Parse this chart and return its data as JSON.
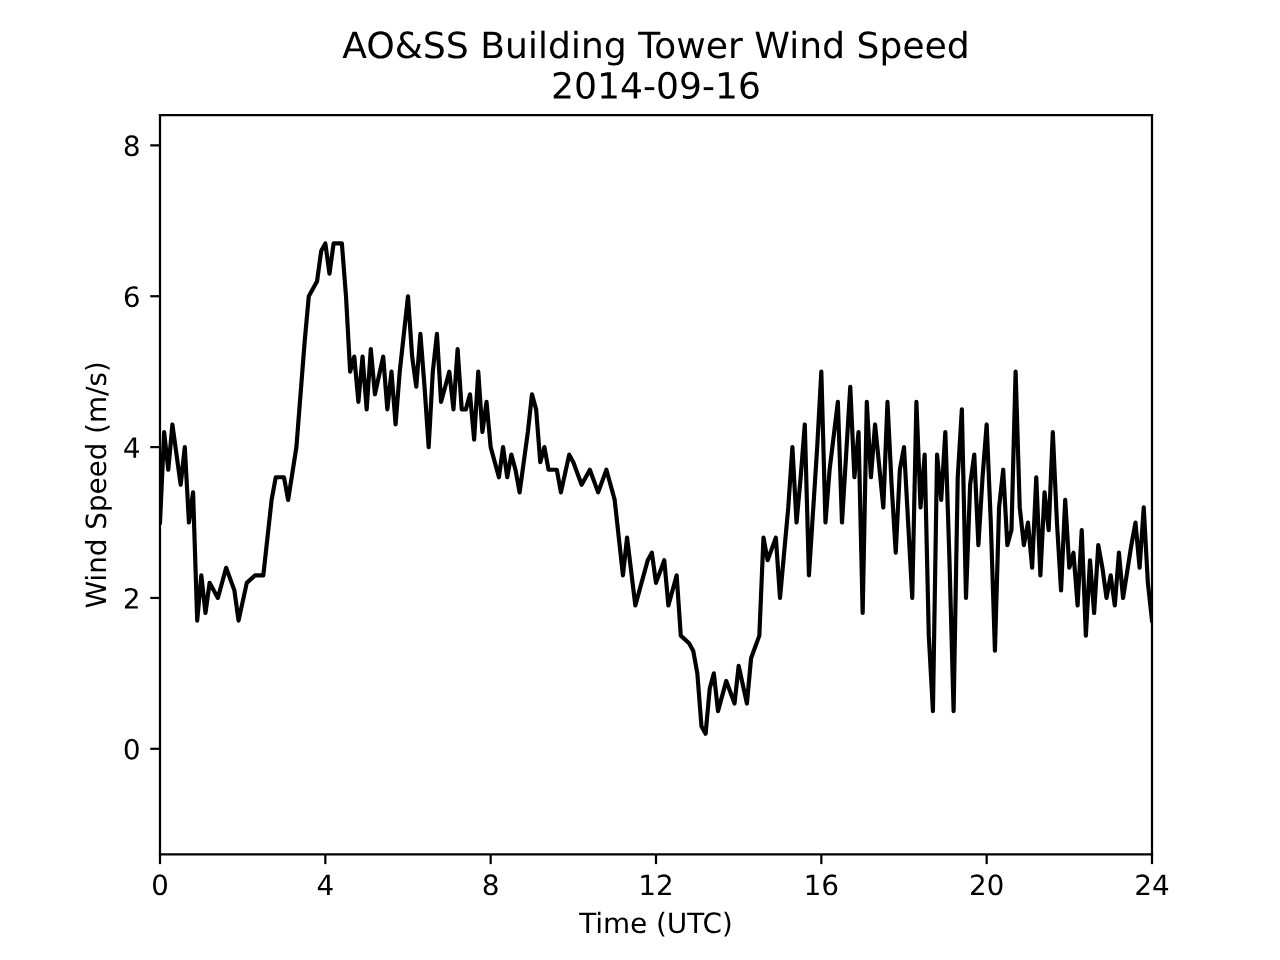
{
  "chart_data": {
    "type": "line",
    "title": "AO&SS Building Tower Wind Speed\n2014-09-16",
    "xlabel": "Time (UTC)",
    "ylabel": "Wind Speed (m/s)",
    "xlim": [
      0,
      24
    ],
    "xticks": [
      0,
      4,
      8,
      12,
      16,
      20,
      24
    ],
    "ylim": [
      -1.4,
      8.4
    ],
    "yticks": [
      0,
      2,
      4,
      6,
      8
    ],
    "grid": false,
    "legend": false,
    "marker": "none",
    "line_style": "solid",
    "series": [
      {
        "color": "#000000",
        "x": [
          0.0,
          0.1,
          0.2,
          0.3,
          0.5,
          0.6,
          0.7,
          0.8,
          0.9,
          1.0,
          1.1,
          1.2,
          1.4,
          1.6,
          1.8,
          1.9,
          2.1,
          2.3,
          2.5,
          2.7,
          2.8,
          3.0,
          3.1,
          3.3,
          3.5,
          3.6,
          3.8,
          3.9,
          4.0,
          4.1,
          4.2,
          4.4,
          4.5,
          4.6,
          4.7,
          4.8,
          4.9,
          5.0,
          5.1,
          5.2,
          5.4,
          5.5,
          5.6,
          5.7,
          5.8,
          5.9,
          6.0,
          6.1,
          6.2,
          6.3,
          6.4,
          6.5,
          6.6,
          6.7,
          6.8,
          6.9,
          7.0,
          7.1,
          7.2,
          7.3,
          7.4,
          7.5,
          7.6,
          7.7,
          7.8,
          7.9,
          8.0,
          8.2,
          8.3,
          8.4,
          8.5,
          8.6,
          8.7,
          8.9,
          9.0,
          9.1,
          9.2,
          9.3,
          9.4,
          9.6,
          9.7,
          9.9,
          10.0,
          10.2,
          10.4,
          10.6,
          10.8,
          11.0,
          11.2,
          11.3,
          11.5,
          11.6,
          11.8,
          11.9,
          12.0,
          12.2,
          12.3,
          12.5,
          12.6,
          12.8,
          12.9,
          13.0,
          13.1,
          13.2,
          13.3,
          13.4,
          13.5,
          13.7,
          13.9,
          14.0,
          14.2,
          14.3,
          14.5,
          14.6,
          14.7,
          14.9,
          15.0,
          15.2,
          15.3,
          15.4,
          15.5,
          15.6,
          15.7,
          15.9,
          16.0,
          16.1,
          16.2,
          16.4,
          16.5,
          16.6,
          16.7,
          16.8,
          16.9,
          17.0,
          17.1,
          17.2,
          17.3,
          17.5,
          17.6,
          17.7,
          17.8,
          17.9,
          18.0,
          18.1,
          18.2,
          18.3,
          18.4,
          18.5,
          18.6,
          18.7,
          18.8,
          18.9,
          19.0,
          19.1,
          19.2,
          19.3,
          19.4,
          19.5,
          19.6,
          19.7,
          19.8,
          19.9,
          20.0,
          20.1,
          20.2,
          20.3,
          20.4,
          20.5,
          20.6,
          20.7,
          20.8,
          20.9,
          21.0,
          21.1,
          21.2,
          21.3,
          21.4,
          21.5,
          21.6,
          21.7,
          21.8,
          21.9,
          22.0,
          22.1,
          22.2,
          22.3,
          22.4,
          22.5,
          22.6,
          22.7,
          22.8,
          22.9,
          23.0,
          23.1,
          23.2,
          23.3,
          23.5,
          23.6,
          23.7,
          23.8,
          23.9,
          24.0
        ],
        "values": [
          3.0,
          4.2,
          3.7,
          4.3,
          3.5,
          4.0,
          3.0,
          3.4,
          1.7,
          2.3,
          1.8,
          2.2,
          2.0,
          2.4,
          2.1,
          1.7,
          2.2,
          2.3,
          2.3,
          3.3,
          3.6,
          3.6,
          3.3,
          4.0,
          5.4,
          6.0,
          6.2,
          6.6,
          6.7,
          6.3,
          6.7,
          6.7,
          6.0,
          5.0,
          5.2,
          4.6,
          5.2,
          4.5,
          5.3,
          4.7,
          5.2,
          4.5,
          5.0,
          4.3,
          5.0,
          5.5,
          6.0,
          5.2,
          4.8,
          5.5,
          4.8,
          4.0,
          5.0,
          5.5,
          4.6,
          4.8,
          5.0,
          4.5,
          5.3,
          4.5,
          4.5,
          4.7,
          4.1,
          5.0,
          4.2,
          4.6,
          4.0,
          3.6,
          4.0,
          3.6,
          3.9,
          3.7,
          3.4,
          4.2,
          4.7,
          4.5,
          3.8,
          4.0,
          3.7,
          3.7,
          3.4,
          3.9,
          3.8,
          3.5,
          3.7,
          3.4,
          3.7,
          3.3,
          2.3,
          2.8,
          1.9,
          2.1,
          2.5,
          2.6,
          2.2,
          2.5,
          1.9,
          2.3,
          1.5,
          1.4,
          1.3,
          1.0,
          0.3,
          0.2,
          0.8,
          1.0,
          0.5,
          0.9,
          0.6,
          1.1,
          0.6,
          1.2,
          1.5,
          2.8,
          2.5,
          2.8,
          2.0,
          3.2,
          4.0,
          3.0,
          3.6,
          4.3,
          2.3,
          4.0,
          5.0,
          3.0,
          3.7,
          4.6,
          3.0,
          3.9,
          4.8,
          3.6,
          4.2,
          1.8,
          4.6,
          3.6,
          4.3,
          3.2,
          4.6,
          3.5,
          2.6,
          3.7,
          4.0,
          3.0,
          2.0,
          4.6,
          3.2,
          3.9,
          1.5,
          0.5,
          3.9,
          3.3,
          4.2,
          2.5,
          0.5,
          3.6,
          4.5,
          2.0,
          3.5,
          3.9,
          2.7,
          3.6,
          4.3,
          3.0,
          1.3,
          3.2,
          3.7,
          2.7,
          2.9,
          5.0,
          3.2,
          2.7,
          3.0,
          2.4,
          3.6,
          2.3,
          3.4,
          2.9,
          4.2,
          3.0,
          2.1,
          3.3,
          2.4,
          2.6,
          1.9,
          2.9,
          1.5,
          2.5,
          1.8,
          2.7,
          2.4,
          2.0,
          2.3,
          1.9,
          2.6,
          2.0,
          2.7,
          3.0,
          2.4,
          3.2,
          2.2,
          1.7
        ]
      }
    ]
  }
}
